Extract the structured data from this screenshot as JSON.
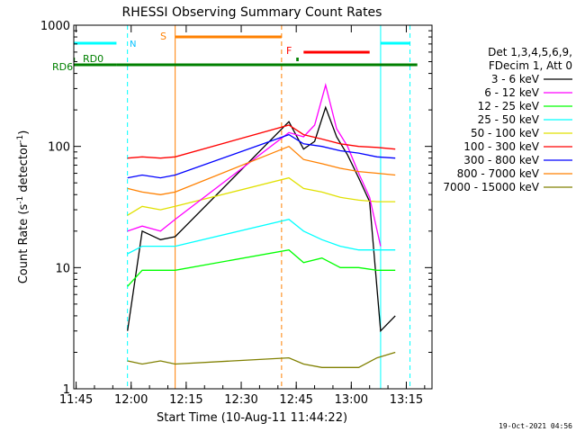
{
  "chart_data": {
    "type": "line",
    "title": "RHESSI Observing Summary Count Rates",
    "xlabel": "Start Time (10-Aug-11 11:44:22)",
    "ylabel": "Count Rate (s",
    "ylabel_sup1": "-1",
    "ylabel_mid": " detector",
    "ylabel_sup2": "-1",
    "ylabel_end": ")",
    "y_scale": "log",
    "xlim": [
      "11:44:22",
      "13:22:00"
    ],
    "ylim": [
      1,
      1000
    ],
    "x_ticks": [
      "11:45",
      "12:00",
      "12:15",
      "12:30",
      "12:45",
      "13:00",
      "13:15"
    ],
    "y_ticks": [
      1,
      10,
      100,
      1000
    ],
    "y_tick_labels": [
      "1",
      "10",
      "100",
      "1000"
    ],
    "grid": false,
    "legend": {
      "placement": "right",
      "header": [
        "Det 1,3,4,5,6,9,",
        "FDecim 1, Att 0"
      ]
    },
    "series": [
      {
        "name": "3 - 6 keV",
        "color": "#000000",
        "x": [
          "11:59",
          "12:03",
          "12:08",
          "12:12",
          "12:43",
          "12:47",
          "12:50",
          "12:53",
          "12:56",
          "12:59",
          "13:02",
          "13:05",
          "13:08",
          "13:12"
        ],
        "y": [
          3,
          20,
          17,
          18,
          160,
          95,
          110,
          210,
          120,
          85,
          55,
          35,
          3,
          4
        ]
      },
      {
        "name": "6 - 12 keV",
        "color": "#ff00ff",
        "x": [
          "11:59",
          "12:03",
          "12:08",
          "12:12",
          "12:43",
          "12:47",
          "12:50",
          "12:53",
          "12:56",
          "12:59",
          "13:02",
          "13:05",
          "13:08"
        ],
        "y": [
          20,
          22,
          20,
          25,
          130,
          120,
          150,
          320,
          140,
          100,
          60,
          38,
          15
        ]
      },
      {
        "name": "12 - 25 keV",
        "color": "#00ff00",
        "x": [
          "11:59",
          "12:03",
          "12:08",
          "12:12",
          "12:43",
          "12:47",
          "12:52",
          "12:57",
          "13:02",
          "13:07",
          "13:12"
        ],
        "y": [
          7,
          9.5,
          9.5,
          9.5,
          14,
          11,
          12,
          10,
          10,
          9.5,
          9.5
        ]
      },
      {
        "name": "25 - 50 keV",
        "color": "#00ffff",
        "x": [
          "11:59",
          "12:03",
          "12:08",
          "12:12",
          "12:43",
          "12:47",
          "12:52",
          "12:57",
          "13:02",
          "13:07",
          "13:12"
        ],
        "y": [
          13,
          15,
          15,
          15,
          25,
          20,
          17,
          15,
          14,
          14,
          14
        ]
      },
      {
        "name": "50 - 100 keV",
        "color": "#e0e000",
        "x": [
          "11:59",
          "12:03",
          "12:08",
          "12:12",
          "12:43",
          "12:47",
          "12:52",
          "12:57",
          "13:02",
          "13:07",
          "13:12"
        ],
        "y": [
          27,
          32,
          30,
          32,
          55,
          45,
          42,
          38,
          36,
          35,
          35
        ]
      },
      {
        "name": "100 - 300 keV",
        "color": "#ff0000",
        "x": [
          "11:59",
          "12:03",
          "12:08",
          "12:12",
          "12:43",
          "12:47",
          "12:52",
          "12:57",
          "13:02",
          "13:07",
          "13:12"
        ],
        "y": [
          80,
          82,
          80,
          82,
          150,
          125,
          115,
          105,
          100,
          98,
          95
        ]
      },
      {
        "name": "300 - 800 keV",
        "color": "#0000ff",
        "x": [
          "11:59",
          "12:03",
          "12:08",
          "12:12",
          "12:43",
          "12:47",
          "12:52",
          "12:57",
          "13:02",
          "13:07",
          "13:12"
        ],
        "y": [
          55,
          58,
          55,
          58,
          125,
          105,
          100,
          92,
          88,
          82,
          80
        ]
      },
      {
        "name": "800 - 7000 keV",
        "color": "#ff8000",
        "x": [
          "11:59",
          "12:03",
          "12:08",
          "12:12",
          "12:43",
          "12:47",
          "12:52",
          "12:57",
          "13:02",
          "13:07",
          "13:12"
        ],
        "y": [
          45,
          42,
          40,
          42,
          100,
          78,
          72,
          66,
          62,
          60,
          58
        ]
      },
      {
        "name": "7000 - 15000 keV",
        "color": "#808000",
        "x": [
          "11:59",
          "12:03",
          "12:08",
          "12:12",
          "12:43",
          "12:47",
          "12:52",
          "12:57",
          "13:02",
          "13:07",
          "13:12"
        ],
        "y": [
          1.7,
          1.6,
          1.7,
          1.6,
          1.8,
          1.6,
          1.5,
          1.5,
          1.5,
          1.8,
          2
        ]
      }
    ],
    "annotations": {
      "rd6_label": "RD6",
      "rd0_label": "RD0",
      "n_label": "N",
      "s_label": "S",
      "f_label": "F",
      "n_bar": {
        "label": "N",
        "color": "#00ffff",
        "segments": [
          [
            "11:44:22",
            "11:56"
          ],
          [
            "13:08",
            "13:16"
          ]
        ]
      },
      "rd0_bar": {
        "label": "RD0",
        "color": "#008000",
        "segments": [
          [
            "11:44:22",
            "11:44:40"
          ],
          [
            "12:45",
            "12:45:40"
          ]
        ]
      },
      "rd6_bar": {
        "label": "RD6",
        "color": "#008000",
        "segments": [
          [
            "11:44:22",
            "11:56"
          ],
          [
            "11:56",
            "13:18"
          ]
        ]
      },
      "s_bar": {
        "label": "S",
        "color": "#ff8000",
        "segments": [
          [
            "12:12",
            "12:41"
          ]
        ]
      },
      "f_bar": {
        "label": "F",
        "color": "#ff0000",
        "segments": [
          [
            "12:47",
            "13:05"
          ]
        ]
      },
      "vlines": [
        {
          "x": "11:59",
          "color": "#00ffff",
          "style": "dashed"
        },
        {
          "x": "12:12",
          "color": "#ff8000",
          "style": "solid"
        },
        {
          "x": "12:41",
          "color": "#ff8000",
          "style": "dashed"
        },
        {
          "x": "13:08",
          "color": "#00ffff",
          "style": "solid"
        },
        {
          "x": "13:16",
          "color": "#00ffff",
          "style": "dashed"
        }
      ]
    }
  },
  "footer": {
    "date_stamp": "19-Oct-2021 04:56"
  }
}
